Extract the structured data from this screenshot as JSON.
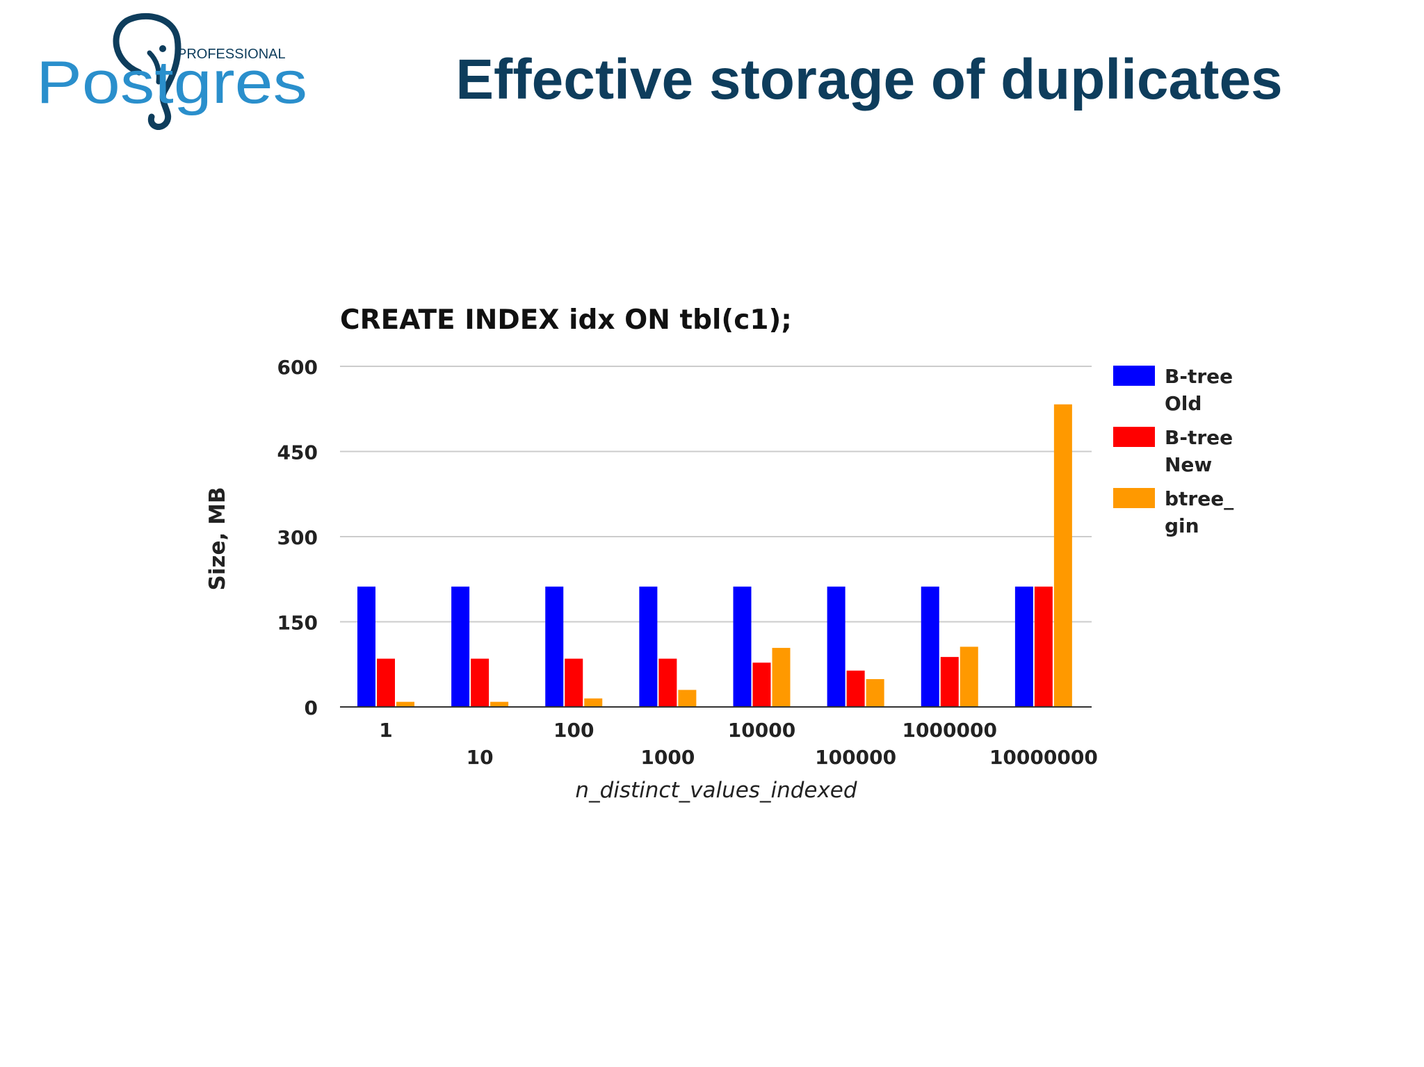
{
  "slide": {
    "title": "Effective storage of duplicates"
  },
  "logo": {
    "word": "Postgres",
    "tag": "PROFESSIONAL",
    "primary_color": "#2a8fcc",
    "outline_color": "#0e3d5c",
    "icon": "elephant-icon"
  },
  "chart_data": {
    "type": "bar",
    "title": "CREATE INDEX idx ON tbl(c1);",
    "xlabel": "n_distinct_values_indexed",
    "ylabel": "Size, MB",
    "ylim": [
      0,
      600
    ],
    "yticks": [
      0,
      150,
      300,
      450,
      600
    ],
    "grid": true,
    "legend_position": "right",
    "categories": [
      "1",
      "10",
      "100",
      "1000",
      "10000",
      "100000",
      "1000000",
      "10000000"
    ],
    "series": [
      {
        "name": "B-tree Old",
        "legend_lines": [
          "B-tree",
          "Old"
        ],
        "color": "#0000ff",
        "values": [
          212,
          212,
          212,
          212,
          212,
          212,
          212,
          212
        ]
      },
      {
        "name": "B-tree New",
        "legend_lines": [
          "B-tree",
          "New"
        ],
        "color": "#ff0000",
        "values": [
          85,
          85,
          85,
          85,
          78,
          64,
          88,
          212
        ]
      },
      {
        "name": "btree_gin",
        "legend_lines": [
          "btree_",
          "gin"
        ],
        "color": "#ff9900",
        "values": [
          9,
          9,
          15,
          30,
          104,
          49,
          106,
          533
        ]
      }
    ]
  }
}
